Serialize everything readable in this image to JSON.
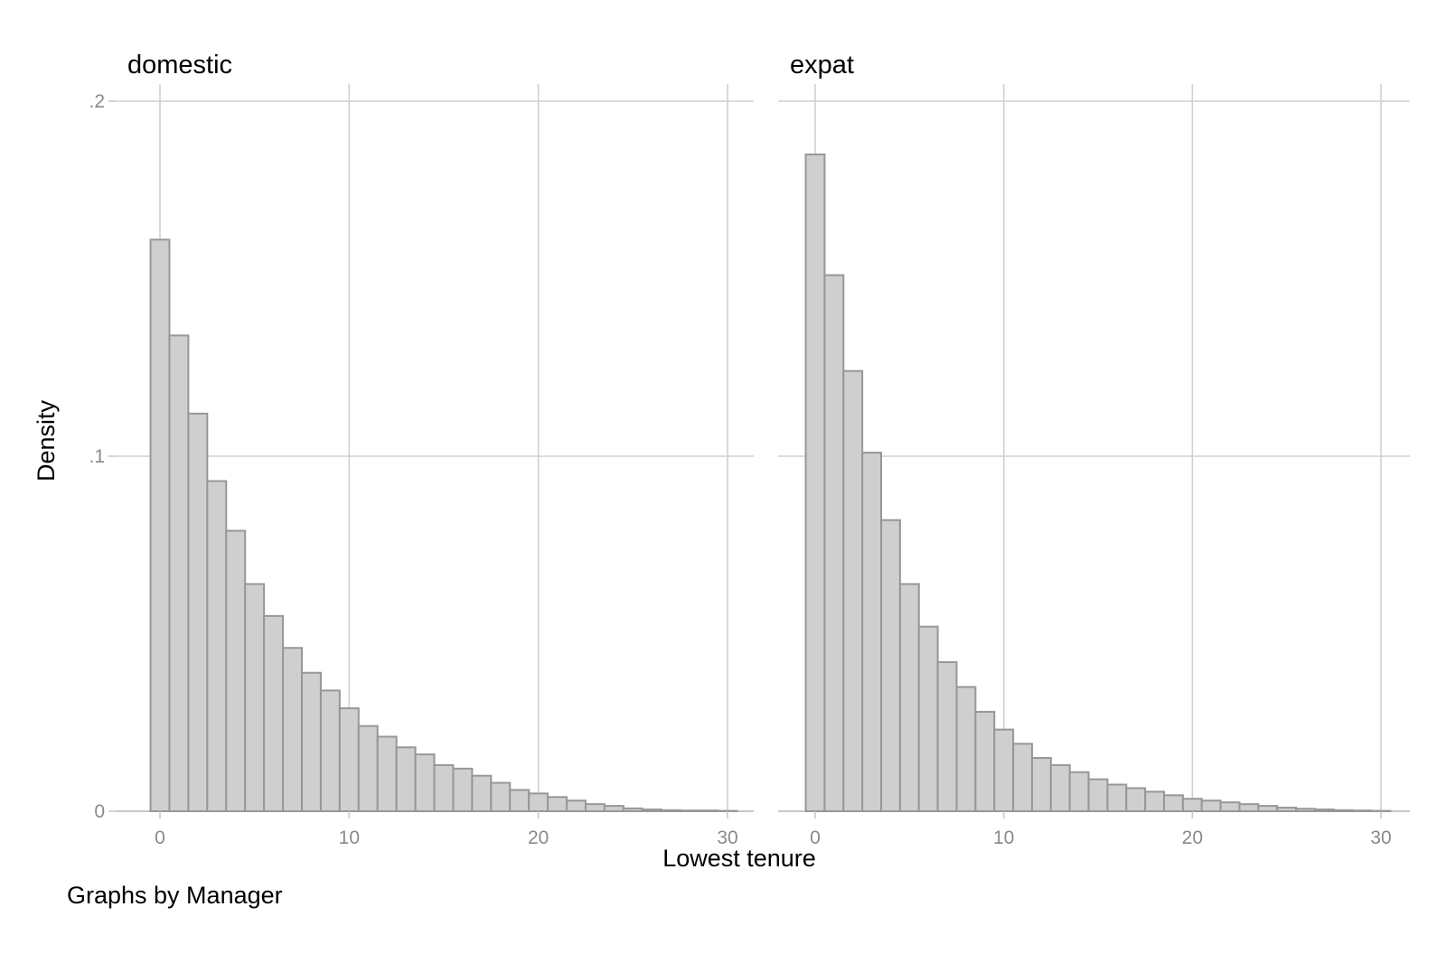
{
  "chart_data": [
    {
      "type": "bar",
      "histogram": true,
      "title": "domestic",
      "xlabel": "Lowest tenure",
      "ylabel": "Density",
      "xlim": [
        -0.5,
        30.5
      ],
      "ylim": [
        0,
        0.2
      ],
      "xticks": [
        0,
        10,
        20,
        30
      ],
      "xtick_labels": [
        "0",
        "10",
        "20",
        "30"
      ],
      "yticks": [
        0,
        0.1,
        0.2
      ],
      "ytick_labels": [
        "0",
        ".1",
        ".2"
      ],
      "grid": true,
      "bin_width": 1,
      "bin_start": -0.5,
      "values": [
        0.161,
        0.134,
        0.112,
        0.093,
        0.079,
        0.064,
        0.055,
        0.046,
        0.039,
        0.034,
        0.029,
        0.024,
        0.021,
        0.018,
        0.016,
        0.013,
        0.012,
        0.01,
        0.008,
        0.006,
        0.005,
        0.004,
        0.003,
        0.002,
        0.0015,
        0.0008,
        0.0005,
        0.0003,
        0.0002,
        0.0002,
        0.0001
      ]
    },
    {
      "type": "bar",
      "histogram": true,
      "title": "expat",
      "xlabel": "Lowest tenure",
      "ylabel": "Density",
      "xlim": [
        -0.5,
        30.5
      ],
      "ylim": [
        0,
        0.2
      ],
      "xticks": [
        0,
        10,
        20,
        30
      ],
      "xtick_labels": [
        "0",
        "10",
        "20",
        "30"
      ],
      "yticks": [
        0,
        0.1,
        0.2
      ],
      "ytick_labels": [
        "0",
        ".1",
        ".2"
      ],
      "grid": true,
      "bin_width": 1,
      "bin_start": -0.5,
      "values": [
        0.185,
        0.151,
        0.124,
        0.101,
        0.082,
        0.064,
        0.052,
        0.042,
        0.035,
        0.028,
        0.023,
        0.019,
        0.015,
        0.013,
        0.011,
        0.009,
        0.0075,
        0.0065,
        0.0055,
        0.0045,
        0.0035,
        0.003,
        0.0025,
        0.002,
        0.0015,
        0.001,
        0.0007,
        0.0005,
        0.0003,
        0.0002,
        0.0001
      ]
    }
  ],
  "shared": {
    "xlabel": "Lowest tenure",
    "ylabel": "Density",
    "note": "Graphs by Manager"
  }
}
